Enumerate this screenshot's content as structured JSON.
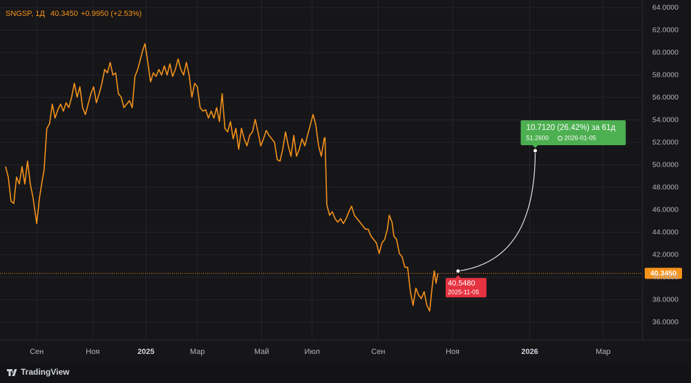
{
  "chart_data": {
    "type": "line",
    "symbol": "SNGSP, 1Д",
    "header_price": "40.3450",
    "header_change": "+0.9950 (+2.53%)",
    "brand": "TradingView",
    "xlim": [
      0,
      700
    ],
    "ylim": [
      34.4,
      64.68
    ],
    "grid": true,
    "xticks": [
      {
        "value": 40,
        "label": "Сен"
      },
      {
        "value": 101,
        "label": "Ноя"
      },
      {
        "value": 159,
        "label": "2025"
      },
      {
        "value": 215,
        "label": "Мар"
      },
      {
        "value": 285,
        "label": "Май"
      },
      {
        "value": 340,
        "label": "Июл"
      },
      {
        "value": 412,
        "label": "Сен"
      },
      {
        "value": 493,
        "label": "Ноя"
      },
      {
        "value": 577,
        "label": "2026"
      },
      {
        "value": 657,
        "label": "Мар"
      }
    ],
    "yticks": [
      {
        "value": 36,
        "label": "36.0000"
      },
      {
        "value": 38,
        "label": "38.0000"
      },
      {
        "value": 40,
        "label": "40.0000"
      },
      {
        "value": 42,
        "label": "42.0000"
      },
      {
        "value": 44,
        "label": "44.0000"
      },
      {
        "value": 46,
        "label": "46.0000"
      },
      {
        "value": 48,
        "label": "48.0000"
      },
      {
        "value": 50,
        "label": "50.0000"
      },
      {
        "value": 52,
        "label": "52.0000"
      },
      {
        "value": 54,
        "label": "54.0000"
      },
      {
        "value": 56,
        "label": "56.0000"
      },
      {
        "value": 58,
        "label": "58.0000"
      },
      {
        "value": 60,
        "label": "60.0000"
      },
      {
        "value": 62,
        "label": "62.0000"
      },
      {
        "value": 64,
        "label": "64.0000"
      }
    ],
    "x": [
      6,
      9,
      12,
      15,
      18,
      21,
      24,
      27,
      30,
      33,
      36,
      40,
      43,
      46,
      48,
      51,
      54,
      57,
      60,
      63,
      66,
      69,
      72,
      75,
      78,
      81,
      84,
      87,
      90,
      93,
      96,
      99,
      102,
      105,
      108,
      111,
      114,
      117,
      120,
      123,
      126,
      129,
      132,
      135,
      138,
      141,
      144,
      147,
      150,
      153,
      156,
      158,
      161,
      164,
      167,
      170,
      173,
      176,
      179,
      182,
      185,
      188,
      191,
      194,
      197,
      200,
      203,
      206,
      209,
      212,
      215,
      218,
      221,
      224,
      227,
      230,
      233,
      236,
      239,
      242,
      245,
      248,
      251,
      254,
      257,
      260,
      263,
      266,
      269,
      272,
      275,
      278,
      281,
      284,
      287,
      290,
      293,
      296,
      299,
      302,
      305,
      308,
      311,
      314,
      317,
      320,
      323,
      326,
      329,
      332,
      335,
      338,
      341,
      344,
      347,
      350,
      353,
      354,
      356,
      359,
      362,
      365,
      368,
      371,
      374,
      377,
      380,
      383,
      386,
      389,
      392,
      395,
      398,
      401,
      404,
      407,
      410,
      413,
      416,
      419,
      422,
      424,
      427,
      429,
      432,
      435,
      438,
      441,
      444,
      447,
      450,
      453,
      456,
      459,
      462,
      465,
      468,
      471,
      473,
      475,
      477
    ],
    "series": [
      {
        "name": "SNGSP",
        "color": "#f7931a",
        "values": [
          49.85,
          48.92,
          46.76,
          46.57,
          48.92,
          48.3,
          49.85,
          48.3,
          50.34,
          48.3,
          47.07,
          44.78,
          47.07,
          48.61,
          49.54,
          53.25,
          53.68,
          55.41,
          54.17,
          54.91,
          55.41,
          54.79,
          55.53,
          55.1,
          56.03,
          57.26,
          56.03,
          56.95,
          55.1,
          54.48,
          55.41,
          56.34,
          56.95,
          55.53,
          56.34,
          57.26,
          58.5,
          58.19,
          59.12,
          58.0,
          58.19,
          56.34,
          56.03,
          55.1,
          55.41,
          55.72,
          55.1,
          57.88,
          58.5,
          59.43,
          60.35,
          60.79,
          59.12,
          57.39,
          58.19,
          57.88,
          58.5,
          58.0,
          58.81,
          58.0,
          59.0,
          57.88,
          58.5,
          59.43,
          58.5,
          58.0,
          59.12,
          58.0,
          56.03,
          57.26,
          56.95,
          55.1,
          54.79,
          54.91,
          54.17,
          54.79,
          54.17,
          55.1,
          53.86,
          56.34,
          53.25,
          52.94,
          53.86,
          52.32,
          53.25,
          51.39,
          53.25,
          52.32,
          51.7,
          52.63,
          52.94,
          54.05,
          52.94,
          51.7,
          52.32,
          53.06,
          52.63,
          52.32,
          52.01,
          50.46,
          50.34,
          51.39,
          52.94,
          51.7,
          50.77,
          52.63,
          50.77,
          51.39,
          52.32,
          51.7,
          52.63,
          53.56,
          54.48,
          53.56,
          51.7,
          50.77,
          52.32,
          52.44,
          46.45,
          45.52,
          45.83,
          45.21,
          44.9,
          45.21,
          44.78,
          45.21,
          45.83,
          46.32,
          45.52,
          45.21,
          44.9,
          44.59,
          44.28,
          44.28,
          43.67,
          43.36,
          43.05,
          42.12,
          43.05,
          43.36,
          44.28,
          45.52,
          44.9,
          43.67,
          43.36,
          42.12,
          41.81,
          40.89,
          40.89,
          38.72,
          37.49,
          39.03,
          38.41,
          38.1,
          38.72,
          37.49,
          36.99,
          39.34,
          40.58,
          39.46,
          40.345
        ]
      }
    ],
    "last_value": {
      "value": 40.345,
      "label": "40.3450"
    },
    "projection": {
      "start": {
        "x": 499,
        "value": 40.548,
        "value_label": "40.5480",
        "date": "2025-11-05"
      },
      "end": {
        "x": 583,
        "value": 51.26,
        "value_label": "51.2600",
        "date": "2026-01-05"
      },
      "change_label": "10.7120 (26.42%) за 61д"
    }
  }
}
